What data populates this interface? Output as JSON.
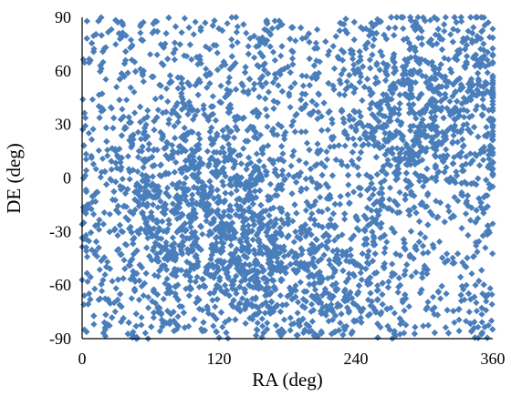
{
  "chart_data": {
    "type": "scatter",
    "xlabel": "RA (deg)",
    "ylabel": "DE (deg)",
    "xlim": [
      0,
      360
    ],
    "ylim": [
      -90,
      90
    ],
    "x_ticks": [
      0,
      120,
      240,
      360
    ],
    "y_ticks": [
      90,
      60,
      30,
      0,
      -30,
      -60,
      -90
    ],
    "grid": false,
    "legend": "none",
    "marker": "diamond",
    "series": [
      {
        "color": "#4a7ebb",
        "density_description": "approximately 5000 points filling the full RA/DE range, uniform in RA with denser clusters near RA 60-130 / DE -40 to 10 and RA 280-340 / DE 20-60",
        "point_count": 5000
      }
    ]
  }
}
